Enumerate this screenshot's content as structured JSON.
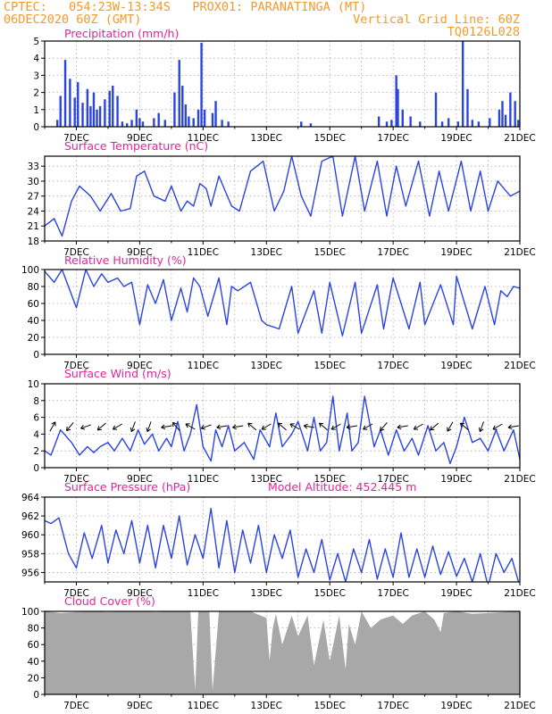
{
  "header": {
    "line1": "CPTEC:   054:23W-13:34S   PROX01: PARANATINGA (MT)",
    "line2_left": "06DEC2020 60Z (GMT)",
    "line2_right": "Vertical Grid Line: 60Z",
    "line3_right": "TQ0126L028"
  },
  "colors": {
    "header": "#f39a2b",
    "panel_title": "#e8229a",
    "series_line": "#2a44e0",
    "cloud_fill": "#a8a8a8",
    "grid": "#aaaaaa"
  },
  "x_ticks": [
    "7DEC",
    "9DEC",
    "11DEC",
    "13DEC",
    "15DEC",
    "17DEC",
    "19DEC",
    "21DEC"
  ],
  "chart_data": [
    {
      "type": "bar",
      "title": "Precipitation (mm/h)",
      "ylim": [
        0,
        5
      ],
      "yticks": [
        "0",
        "1",
        "2",
        "3",
        "4",
        "5"
      ],
      "x_days": [
        6.4,
        6.5,
        6.65,
        6.8,
        6.95,
        7.05,
        7.2,
        7.35,
        7.45,
        7.55,
        7.65,
        7.75,
        7.9,
        8.05,
        8.15,
        8.3,
        8.45,
        8.6,
        8.75,
        8.9,
        9.0,
        9.1,
        9.45,
        9.6,
        9.8,
        10.1,
        10.25,
        10.35,
        10.45,
        10.55,
        10.7,
        10.85,
        10.95,
        11.05,
        11.3,
        11.4,
        11.6,
        11.8,
        14.1,
        14.4,
        16.55,
        16.8,
        16.95,
        17.1,
        17.15,
        17.3,
        17.55,
        17.85,
        18.35,
        18.55,
        18.75,
        19.05,
        19.2,
        19.35,
        19.5,
        19.7,
        20.05,
        20.35,
        20.45,
        20.55,
        20.7,
        20.85,
        20.95
      ],
      "values": [
        0.4,
        1.8,
        3.9,
        2.8,
        1.7,
        2.6,
        1.4,
        2.2,
        1.2,
        2.0,
        1.0,
        1.2,
        1.6,
        2.1,
        2.4,
        1.8,
        0.3,
        0.2,
        0.4,
        1.0,
        0.5,
        0.3,
        0.5,
        0.8,
        0.4,
        2.0,
        3.9,
        2.4,
        1.3,
        0.6,
        0.5,
        1.0,
        4.9,
        1.0,
        0.8,
        1.5,
        0.4,
        0.3,
        0.3,
        0.2,
        0.6,
        0.3,
        0.4,
        3.0,
        2.2,
        1.0,
        0.6,
        0.3,
        2.0,
        0.3,
        0.5,
        0.3,
        5.0,
        2.2,
        0.4,
        0.3,
        0.5,
        1.0,
        1.5,
        0.7,
        2.0,
        1.5,
        0.4
      ],
      "bars_shown": "selected hourly bars"
    },
    {
      "type": "line",
      "title": "Surface Temperature (nC)",
      "ylim": [
        18,
        35
      ],
      "yticks": [
        "18",
        "21",
        "24",
        "27",
        "30",
        "33"
      ],
      "x_days": [
        6.0,
        6.3,
        6.55,
        6.85,
        7.1,
        7.45,
        7.75,
        8.1,
        8.4,
        8.7,
        8.9,
        9.15,
        9.45,
        9.8,
        10.0,
        10.3,
        10.5,
        10.7,
        10.9,
        11.1,
        11.25,
        11.5,
        11.9,
        12.15,
        12.5,
        12.9,
        13.25,
        13.55,
        13.8,
        14.1,
        14.4,
        14.75,
        15.1,
        15.4,
        15.8,
        16.1,
        16.5,
        16.8,
        17.1,
        17.4,
        17.8,
        18.15,
        18.45,
        18.75,
        19.15,
        19.45,
        19.75,
        20.0,
        20.3,
        20.7,
        21.0
      ],
      "values": [
        21,
        22.5,
        19,
        26,
        29,
        27,
        24,
        27.5,
        24,
        24.5,
        31,
        32,
        27,
        26,
        29,
        24,
        26,
        25,
        29.5,
        28.5,
        25,
        31,
        25,
        24,
        32,
        34,
        24,
        28,
        35,
        27,
        23,
        34,
        35,
        23,
        35,
        24,
        34,
        23,
        33,
        25,
        34,
        23,
        32,
        24,
        34,
        24,
        32,
        24,
        30,
        27,
        28
      ]
    },
    {
      "type": "line",
      "title": "Relative Humidity (%)",
      "ylim": [
        0,
        100
      ],
      "yticks": [
        "0",
        "20",
        "40",
        "60",
        "80",
        "100"
      ],
      "x_days": [
        6.0,
        6.3,
        6.55,
        7.0,
        7.3,
        7.55,
        7.8,
        8.0,
        8.3,
        8.5,
        8.75,
        9.0,
        9.25,
        9.5,
        9.75,
        10.0,
        10.3,
        10.5,
        10.7,
        10.9,
        11.15,
        11.5,
        11.75,
        11.9,
        12.1,
        12.5,
        12.85,
        13.0,
        13.4,
        13.8,
        14.0,
        14.5,
        14.75,
        15.0,
        15.4,
        15.8,
        16.0,
        16.5,
        16.7,
        17.0,
        17.5,
        17.85,
        18.0,
        18.5,
        18.9,
        19.0,
        19.5,
        19.9,
        20.2,
        20.4,
        20.6,
        20.8,
        21.0
      ],
      "values": [
        98,
        85,
        100,
        55,
        100,
        80,
        95,
        85,
        90,
        80,
        85,
        35,
        82,
        60,
        88,
        40,
        78,
        50,
        90,
        80,
        45,
        90,
        35,
        80,
        75,
        85,
        40,
        35,
        30,
        80,
        25,
        75,
        25,
        85,
        22,
        85,
        25,
        82,
        30,
        90,
        30,
        85,
        35,
        82,
        35,
        92,
        30,
        80,
        35,
        75,
        68,
        80,
        78
      ]
    },
    {
      "type": "line",
      "title": "Surface Wind (m/s)",
      "ylim": [
        0,
        10
      ],
      "yticks": [
        "0",
        "2",
        "4",
        "6",
        "8",
        "10"
      ],
      "x_days": [
        6.0,
        6.2,
        6.5,
        6.85,
        7.1,
        7.35,
        7.55,
        7.75,
        8.0,
        8.2,
        8.45,
        8.7,
        8.95,
        9.15,
        9.4,
        9.6,
        9.85,
        10.0,
        10.2,
        10.4,
        10.6,
        10.8,
        11.0,
        11.25,
        11.4,
        11.6,
        11.8,
        12.0,
        12.3,
        12.6,
        12.8,
        13.1,
        13.3,
        13.5,
        13.8,
        14.0,
        14.3,
        14.5,
        14.7,
        14.9,
        15.1,
        15.3,
        15.55,
        15.7,
        15.9,
        16.1,
        16.4,
        16.6,
        16.85,
        17.1,
        17.35,
        17.6,
        17.8,
        18.1,
        18.35,
        18.6,
        18.8,
        19.0,
        19.25,
        19.5,
        19.75,
        20.0,
        20.25,
        20.5,
        20.8,
        21.0
      ],
      "values": [
        2,
        1.5,
        4.5,
        3,
        1.5,
        2.5,
        1.8,
        2.5,
        3,
        2,
        3.5,
        2,
        4.5,
        2.8,
        4,
        2,
        3.5,
        2.5,
        5.5,
        2,
        4,
        7.5,
        2.5,
        0.8,
        4.5,
        2.5,
        5,
        2,
        3,
        1,
        4.5,
        2.5,
        6.5,
        2.5,
        4,
        5.5,
        2,
        6,
        2,
        3,
        8.5,
        2,
        6.5,
        2,
        3,
        8.5,
        2.5,
        4.5,
        1.5,
        4.5,
        2,
        3.5,
        1.5,
        5,
        2,
        3,
        0.5,
        2.5,
        6,
        3,
        3.5,
        2,
        4.5,
        2,
        4.5,
        1
      ]
    },
    {
      "type": "line",
      "title": "Surface Pressure (hPa)",
      "subtitle": "Model Altitude: 452.445 m",
      "ylim": [
        955,
        964
      ],
      "yticks": [
        "956",
        "958",
        "960",
        "962",
        "964"
      ],
      "x_days": [
        6.0,
        6.2,
        6.45,
        6.75,
        7.0,
        7.25,
        7.5,
        7.8,
        8.0,
        8.25,
        8.5,
        8.75,
        9.0,
        9.25,
        9.5,
        9.75,
        10.0,
        10.25,
        10.5,
        10.75,
        11.0,
        11.25,
        11.5,
        11.75,
        12.0,
        12.25,
        12.5,
        12.75,
        13.0,
        13.25,
        13.5,
        13.75,
        14.0,
        14.25,
        14.5,
        14.75,
        15.0,
        15.25,
        15.5,
        15.75,
        16.0,
        16.25,
        16.5,
        16.75,
        17.0,
        17.25,
        17.5,
        17.75,
        18.0,
        18.25,
        18.5,
        18.75,
        19.0,
        19.25,
        19.5,
        19.75,
        20.0,
        20.25,
        20.5,
        20.75,
        21.0
      ],
      "values": [
        961.5,
        961.2,
        961.8,
        958,
        956.5,
        960.2,
        957.5,
        961,
        957,
        960.5,
        958,
        961.5,
        957,
        961,
        956.5,
        961,
        957.5,
        962,
        956.8,
        960,
        957.5,
        962.8,
        956.5,
        961.5,
        956,
        960.5,
        957,
        961,
        956,
        960,
        957.5,
        960.5,
        955.5,
        958.5,
        956,
        959.5,
        955.2,
        958,
        955,
        958.5,
        956,
        959.5,
        955.3,
        958.5,
        955.5,
        960.2,
        955.5,
        958.5,
        955.5,
        958.8,
        955.8,
        958.2,
        955.6,
        957.5,
        955,
        958,
        954.5,
        958,
        956,
        957.5,
        954.5
      ]
    },
    {
      "type": "area",
      "title": "Cloud Cover (%)",
      "ylim": [
        0,
        100
      ],
      "yticks": [
        "0",
        "20",
        "40",
        "60",
        "80",
        "100"
      ],
      "x_days": [
        6.0,
        6.5,
        7.0,
        7.5,
        8.0,
        8.5,
        9.0,
        9.5,
        10.0,
        10.3,
        10.6,
        10.75,
        10.85,
        11.0,
        11.2,
        11.3,
        11.5,
        12.0,
        12.5,
        13.0,
        13.1,
        13.2,
        13.3,
        13.5,
        13.8,
        14.0,
        14.3,
        14.5,
        14.8,
        15.0,
        15.3,
        15.5,
        15.6,
        15.8,
        16.0,
        16.3,
        16.6,
        17.0,
        17.3,
        17.6,
        18.0,
        18.3,
        18.5,
        18.6,
        19.0,
        19.5,
        20.0,
        20.5,
        21.0
      ],
      "values": [
        100,
        98,
        99,
        100,
        99,
        100,
        100,
        99,
        100,
        100,
        100,
        5,
        100,
        100,
        100,
        5,
        100,
        100,
        100,
        92,
        40,
        80,
        97,
        60,
        95,
        70,
        95,
        35,
        90,
        40,
        95,
        30,
        85,
        60,
        100,
        80,
        90,
        95,
        85,
        95,
        100,
        90,
        75,
        98,
        100,
        97,
        98,
        99,
        100
      ]
    }
  ]
}
